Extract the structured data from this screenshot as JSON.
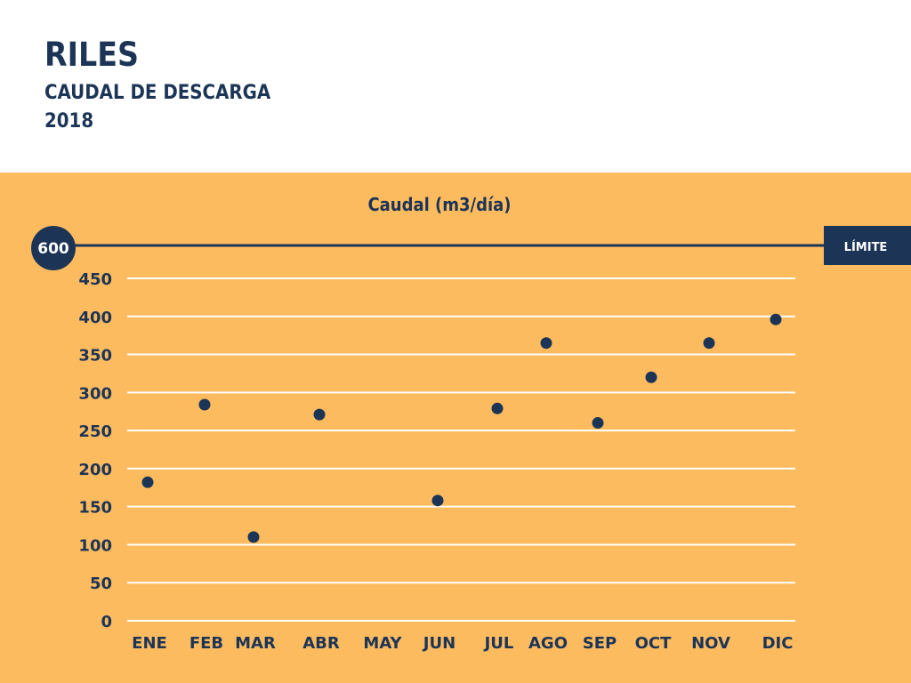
{
  "header": {
    "title": "RILES",
    "subtitle": "CAUDAL DE DESCARGA",
    "year": "2018"
  },
  "colors": {
    "panel_bg": "#fdbb5f",
    "navy": "#1c3557",
    "gridline": "#ffffff"
  },
  "limit": {
    "value": 600,
    "value_label": "600",
    "label": "LÍMITE"
  },
  "chart_data": {
    "type": "scatter",
    "title": "Caudal (m3/día)",
    "xlabel": "",
    "ylabel": "",
    "categories": [
      "ENE",
      "FEB",
      "MAR",
      "ABR",
      "MAY",
      "JUN",
      "JUL",
      "AGO",
      "SEP",
      "OCT",
      "NOV",
      "DIC"
    ],
    "values": [
      182,
      284,
      110,
      271,
      null,
      158,
      279,
      365,
      260,
      320,
      365,
      396
    ],
    "ylim": [
      0,
      450
    ],
    "yticks": [
      "0",
      "50",
      "100",
      "150",
      "200",
      "250",
      "300",
      "350",
      "400",
      "450"
    ],
    "grid": true,
    "legend": "none"
  }
}
